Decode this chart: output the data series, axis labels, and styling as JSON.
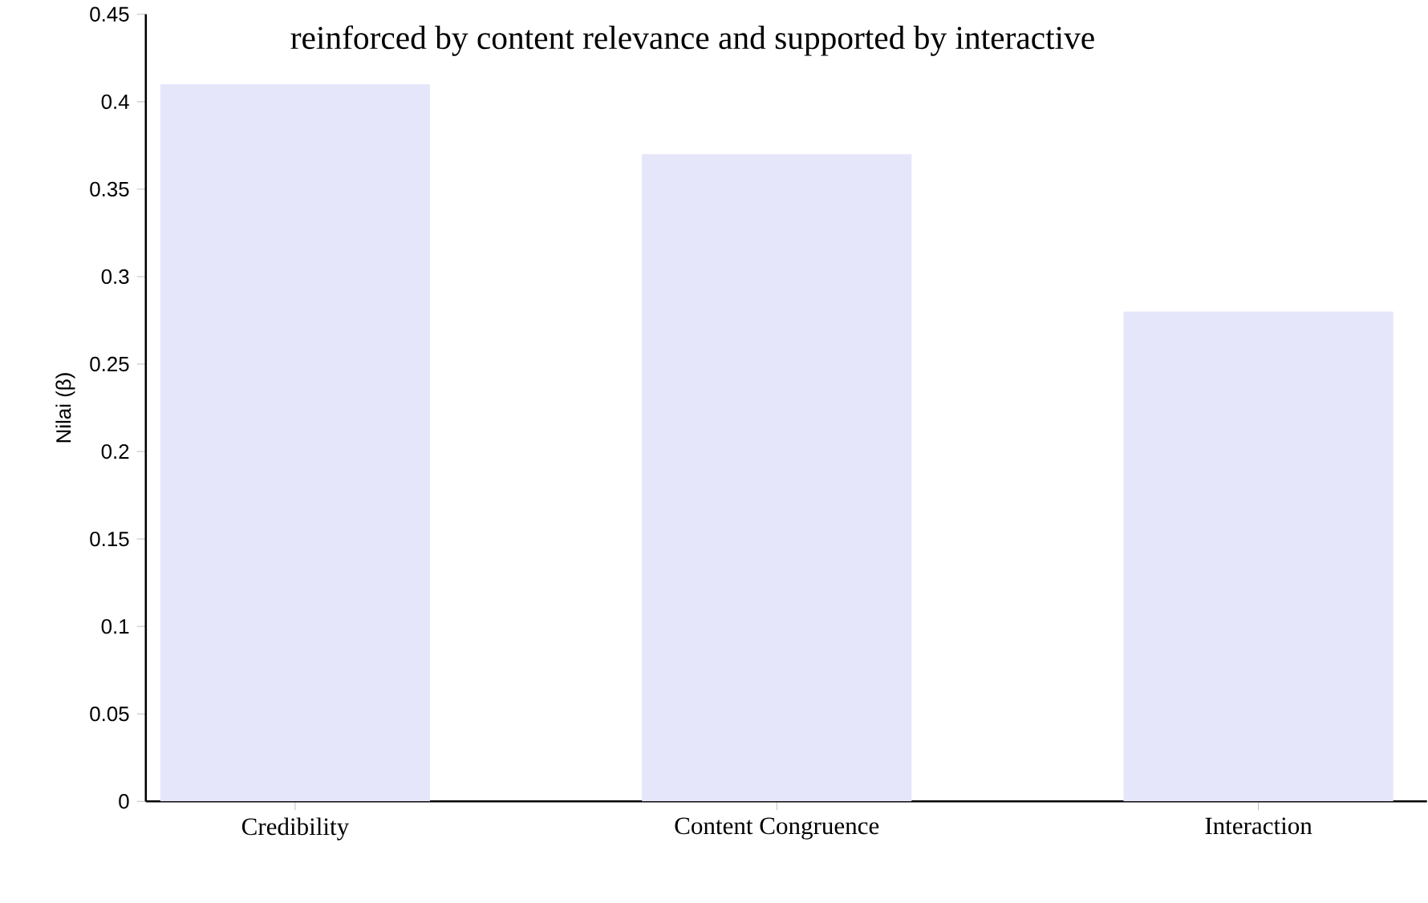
{
  "chart_data": {
    "type": "bar",
    "annotations": [
      "reinforced by content relevance and supported by interactive"
    ],
    "ylabel": "Nilai (β)",
    "categories": [
      "Credibility",
      "Content Congruence",
      "Interaction"
    ],
    "values": [
      0.41,
      0.37,
      0.28
    ],
    "color": "#e6e6fa",
    "ylim": [
      0,
      0.45
    ],
    "yticks": [
      0,
      0.05,
      0.1,
      0.15,
      0.2,
      0.25,
      0.3,
      0.35,
      0.4,
      0.45
    ]
  }
}
